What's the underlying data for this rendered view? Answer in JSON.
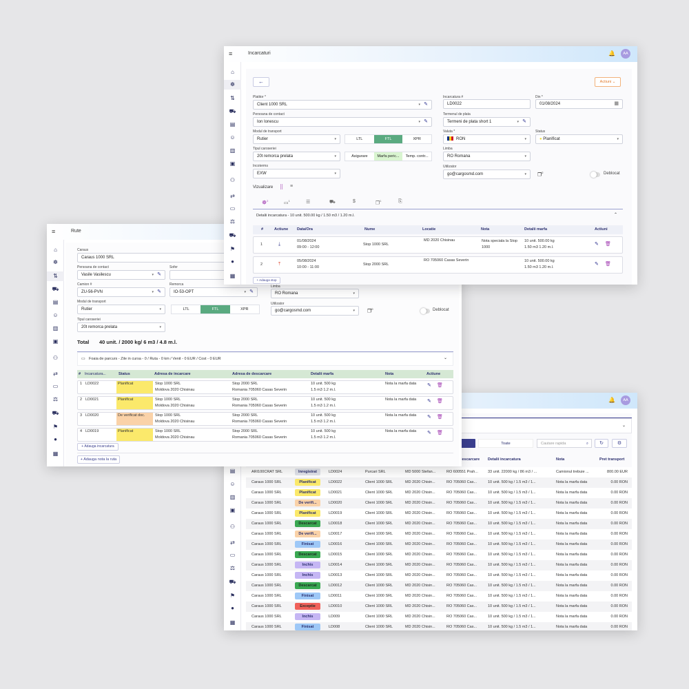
{
  "colors": {
    "accent": "#3b3f8f",
    "ftl_active": "#5aaa80",
    "planificat": "#fbe96b",
    "de_verificat": "#fad2a8",
    "descarcat": "#3aa852",
    "finisat": "#9ec8f7",
    "inchis": "#c5b6f4",
    "exceptie": "#f0615a",
    "inregistrat": "#e2e4ec"
  },
  "sidebar_icons": [
    "home-icon",
    "network-icon",
    "routes-icon",
    "truck-icon",
    "document-icon",
    "people-icon",
    "contract-icon",
    "clipboard-icon",
    "team-icon",
    "exchange-icon",
    "card-icon",
    "law-icon",
    "van-icon",
    "flag-icon",
    "money-icon",
    "book-icon"
  ],
  "load_window": {
    "title": "Incarcaturi",
    "avatar": "AA",
    "back": "←",
    "actions_label": "Actiuni",
    "platitor": {
      "label": "Platitor *",
      "value": "Client 1000 SRL"
    },
    "contact": {
      "label": "Persoana de contact",
      "value": "Ion Ionescu"
    },
    "transport_mode": {
      "label": "Modul de transport",
      "value": "Rutier",
      "options": [
        "LTL",
        "FTL",
        "XPR"
      ],
      "selected": "FTL"
    },
    "body_type": {
      "label": "Tipul caroseriei",
      "value": "20t remorca prelata",
      "options": [
        "Asigurare",
        "Marfa peric...",
        "Temp. contr..."
      ]
    },
    "incoterms": {
      "label": "Incoterms",
      "value": "EXW"
    },
    "load_no": {
      "label": "Incarcatura #",
      "value": "LD0022"
    },
    "date": {
      "label": "Din *",
      "value": "01/08/2024"
    },
    "payment_terms": {
      "label": "Termenul de plata",
      "value": "Termeni de plata short 1"
    },
    "currency": {
      "label": "Valuta *",
      "value": "RON"
    },
    "status": {
      "label": "Status",
      "value": "Planificat"
    },
    "language": {
      "label": "Limba",
      "value": "RO Romana"
    },
    "user": {
      "label": "Utilizator",
      "value": "go@cargosmd.com",
      "badge": "2"
    },
    "unlocked_label": "Deblocat",
    "view_label": "Vizualizare",
    "tab_badges": {
      "t0": "2",
      "t1": "1",
      "t5": "1"
    },
    "details_title": "Detalii incarcatura - 10 unit. 500.00 kg / 1.50 m3 / 1.20 m.l.",
    "stops_headers": [
      "#",
      "Actiune",
      "Data/Ora",
      "Nume",
      "Locatie",
      "Nota",
      "Detalii marfa",
      "Actiuni"
    ],
    "stops": [
      {
        "n": "1",
        "action": "load",
        "date": "01/08/2024",
        "time": "09:00 - 12:00",
        "name": "Stop 1000 SRL",
        "location": "MD 2020 Chisinau",
        "note1": "Nota speciala la Stop",
        "note2": "1000",
        "d1": "10 unit. 500.00 kg",
        "d2": "1.50 m3 1.20 m.l."
      },
      {
        "n": "2",
        "action": "unload",
        "date": "05/08/2024",
        "time": "10:00 - 11:00",
        "name": "Stop 2000 SRL",
        "location": "RO 705060 Casas Severin",
        "note1": "",
        "note2": "",
        "d1": "10 unit. 500.00 kg",
        "d2": "1.50 m3 1.20 m.l."
      }
    ],
    "add_stop": "+ Adauga stop"
  },
  "route_window": {
    "title": "Rute",
    "carrier": {
      "label": "Caraus",
      "value": "Caraus 1000 SRL"
    },
    "contact": {
      "label": "Persoana de contact",
      "value": "Vasile Vasilescu"
    },
    "driver": {
      "label": "Sofer",
      "value": ""
    },
    "truck": {
      "label": "Camion #",
      "value": "ZU-56-PVN"
    },
    "trailer": {
      "label": "Remorca",
      "value": "IO-53-OPT"
    },
    "language": {
      "label": "Limba",
      "value": "RO Romana"
    },
    "transport_mode": {
      "label": "Modul de transport",
      "value": "Rutier",
      "options": [
        "LTL",
        "FTL",
        "XPR"
      ]
    },
    "user": {
      "label": "Utilizator",
      "value": "go@cargosmd.com",
      "badge": "0"
    },
    "unlocked_label": "Deblocat",
    "body_type": {
      "label": "Tipul caroseriei",
      "value": "20t remorca prelata"
    },
    "total_label": "Total",
    "total_value": "40 unit. / 2000 kg/ 6 m3 / 4.8 m.l.",
    "waybill": "Foaia de parcurs - Zile in cursa - 0 / Ruta - 0 km / Venit - 0 EUR / Cost - 0 EUR",
    "headers": [
      "#",
      "Incarcatura...",
      "Status",
      "Adresa de incarcare",
      "Adresa de descarcare",
      "Detalii marfa",
      "Nota",
      "Actiune"
    ],
    "rows": [
      {
        "n": "1",
        "ld": "LD0022",
        "status": "Planificat",
        "color": "#fbe96b"
      },
      {
        "n": "2",
        "ld": "LD0021",
        "status": "Planificat",
        "color": "#fbe96b"
      },
      {
        "n": "3",
        "ld": "LD0020",
        "status": "De verificat doc.",
        "color": "#fad2a8"
      },
      {
        "n": "4",
        "ld": "LD0019",
        "status": "Planificat",
        "color": "#fbe96b"
      }
    ],
    "row_common": {
      "l1": "Stop 1000 SRL",
      "l2": "Moldova 2020 Chisinau",
      "u1": "Stop 2000 SRL",
      "u2": "Romania 705060 Casas Severin",
      "d1": "10 unit. 500 kg",
      "d2": "1.5 m3 1.2 m.l.",
      "note": "Nota la marfa data"
    },
    "add_load": "+ Adauga incarcatura",
    "add_note": "+ Adauga nota la ruta"
  },
  "list_window": {
    "avatar": "AA",
    "filter_all": "Toate",
    "search_placeholder": "Cautare rapida",
    "headers": {
      "unload": "Adresa de descarcare",
      "details": "Detalii incarcatura",
      "note": "Nota",
      "price": "Pret transport"
    },
    "rows": [
      [
        "ARI100CRAT SRL",
        "Inregistrat",
        "LD0024",
        "Purcari SRL",
        "MD 5000 Stefan...",
        "RO 600551 Prah...",
        "33 unit. 22000 kg / 86 m3 / ...",
        "Camionul trebuie ...",
        "800.00 EUR",
        "#e2e4ec"
      ],
      [
        "Caraus 1000 SRL",
        "Planificat",
        "LD0022",
        "Client 1000 SRL",
        "MD 2020 Chisin...",
        "RO 705060 Cas...",
        "10 unit. 500 kg / 1.5 m3 / 1...",
        "Nota la marfa data",
        "0.00 RON",
        "#fbe96b"
      ],
      [
        "Caraus 1000 SRL",
        "Planificat",
        "LD0021",
        "Client 1000 SRL",
        "MD 2020 Chisin...",
        "RO 705060 Cas...",
        "10 unit. 500 kg / 1.5 m3 / 1...",
        "Nota la marfa data",
        "0.00 RON",
        "#fbe96b"
      ],
      [
        "Caraus 1000 SRL",
        "De verifi...",
        "LD0020",
        "Client 1000 SRL",
        "MD 2020 Chisin...",
        "RO 705060 Cas...",
        "10 unit. 500 kg / 1.5 m3 / 1...",
        "Nota la marfa data",
        "0.00 RON",
        "#fad2a8"
      ],
      [
        "Caraus 1000 SRL",
        "Planificat",
        "LD0019",
        "Client 1000 SRL",
        "MD 2020 Chisin...",
        "RO 705060 Cas...",
        "10 unit. 500 kg / 1.5 m3 / 1...",
        "Nota la marfa data",
        "0.00 RON",
        "#fbe96b"
      ],
      [
        "Caraus 1000 SRL",
        "Descarcat",
        "LD0018",
        "Client 1000 SRL",
        "MD 2020 Chisin...",
        "RO 705060 Cas...",
        "10 unit. 500 kg / 1.5 m3 / 1...",
        "Nota la marfa data",
        "0.00 RON",
        "#3aa852"
      ],
      [
        "Caraus 1000 SRL",
        "De verifi...",
        "LD0017",
        "Client 1000 SRL",
        "MD 2020 Chisin...",
        "RO 705060 Cas...",
        "10 unit. 500 kg / 1.5 m3 / 1...",
        "Nota la marfa data",
        "0.00 RON",
        "#fad2a8"
      ],
      [
        "Caraus 1000 SRL",
        "Finisat",
        "LD0016",
        "Client 1000 SRL",
        "MD 2020 Chisin...",
        "RO 705060 Cas...",
        "10 unit. 500 kg / 1.5 m3 / 1...",
        "Nota la marfa data",
        "0.00 RON",
        "#9ec8f7"
      ],
      [
        "Caraus 1000 SRL",
        "Descarcat",
        "LD0015",
        "Client 1000 SRL",
        "MD 2020 Chisin...",
        "RO 705060 Cas...",
        "10 unit. 500 kg / 1.5 m3 / 1...",
        "Nota la marfa data",
        "0.00 RON",
        "#3aa852"
      ],
      [
        "Caraus 1000 SRL",
        "Inchis",
        "LD0014",
        "Client 1000 SRL",
        "MD 2020 Chisin...",
        "RO 705060 Cas...",
        "10 unit. 500 kg / 1.5 m3 / 1...",
        "Nota la marfa data",
        "0.00 RON",
        "#c5b6f4"
      ],
      [
        "Caraus 1000 SRL",
        "Inchis",
        "LD0013",
        "Client 1000 SRL",
        "MD 2020 Chisin...",
        "RO 705060 Cas...",
        "10 unit. 500 kg / 1.5 m3 / 1...",
        "Nota la marfa data",
        "0.00 RON",
        "#c5b6f4"
      ],
      [
        "Caraus 1000 SRL",
        "Descarcat",
        "LD0012",
        "Client 1000 SRL",
        "MD 2020 Chisin...",
        "RO 705060 Cas...",
        "10 unit. 500 kg / 1.5 m3 / 1...",
        "Nota la marfa data",
        "0.00 RON",
        "#3aa852"
      ],
      [
        "Caraus 1000 SRL",
        "Finisat",
        "LD0011",
        "Client 1000 SRL",
        "MD 2020 Chisin...",
        "RO 705060 Cas...",
        "10 unit. 500 kg / 1.5 m3 / 1...",
        "Nota la marfa data",
        "0.00 RON",
        "#9ec8f7"
      ],
      [
        "Caraus 1000 SRL",
        "Exceptie",
        "LD0010",
        "Client 1000 SRL",
        "MD 2020 Chisin...",
        "RO 705060 Cas...",
        "10 unit. 500 kg / 1.5 m3 / 1...",
        "Nota la marfa data",
        "0.00 RON",
        "#f0615a"
      ],
      [
        "Caraus 1000 SRL",
        "Inchis",
        "LD009",
        "Client 1000 SRL",
        "MD 2020 Chisin...",
        "RO 705060 Cas...",
        "10 unit. 500 kg / 1.5 m3 / 1...",
        "Nota la marfa data",
        "0.00 RON",
        "#c5b6f4"
      ],
      [
        "Caraus 1000 SRL",
        "Finisat",
        "LD008",
        "Client 1000 SRL",
        "MD 2020 Chisin...",
        "RO 705060 Cas...",
        "10 unit. 500 kg / 1.5 m3 / 1...",
        "Nota la marfa data",
        "0.00 RON",
        "#9ec8f7"
      ]
    ]
  }
}
